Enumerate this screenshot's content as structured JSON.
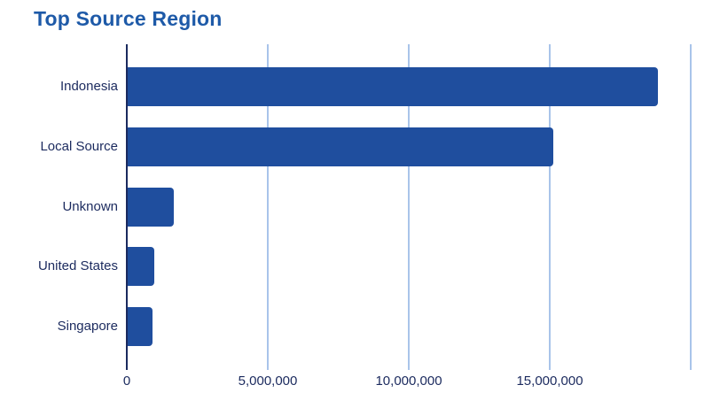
{
  "title": "Top Source Region",
  "chart_data": {
    "type": "bar",
    "orientation": "horizontal",
    "title": "Top Source Region",
    "categories": [
      "Indonesia",
      "Local Source",
      "Unknown",
      "United States",
      "Singapore"
    ],
    "values": [
      18800000,
      15100000,
      1650000,
      950000,
      880000
    ],
    "xlabel": "",
    "ylabel": "",
    "x_tick_labels": [
      "0",
      "5,000,000",
      "10,000,000",
      "15,000,000"
    ],
    "x_tick_values": [
      0,
      5000000,
      10000000,
      15000000
    ],
    "xlim": [
      0,
      20750000
    ],
    "grid": "vertical-gridlines-on",
    "legend": "none"
  },
  "colors": {
    "bar": "#1f4e9e",
    "title_text": "#1e5aa8",
    "label_text": "#1b2a5e",
    "gridline": "#a9c4ea",
    "axis_line": "#1b2a5e",
    "background": "#ffffff"
  }
}
